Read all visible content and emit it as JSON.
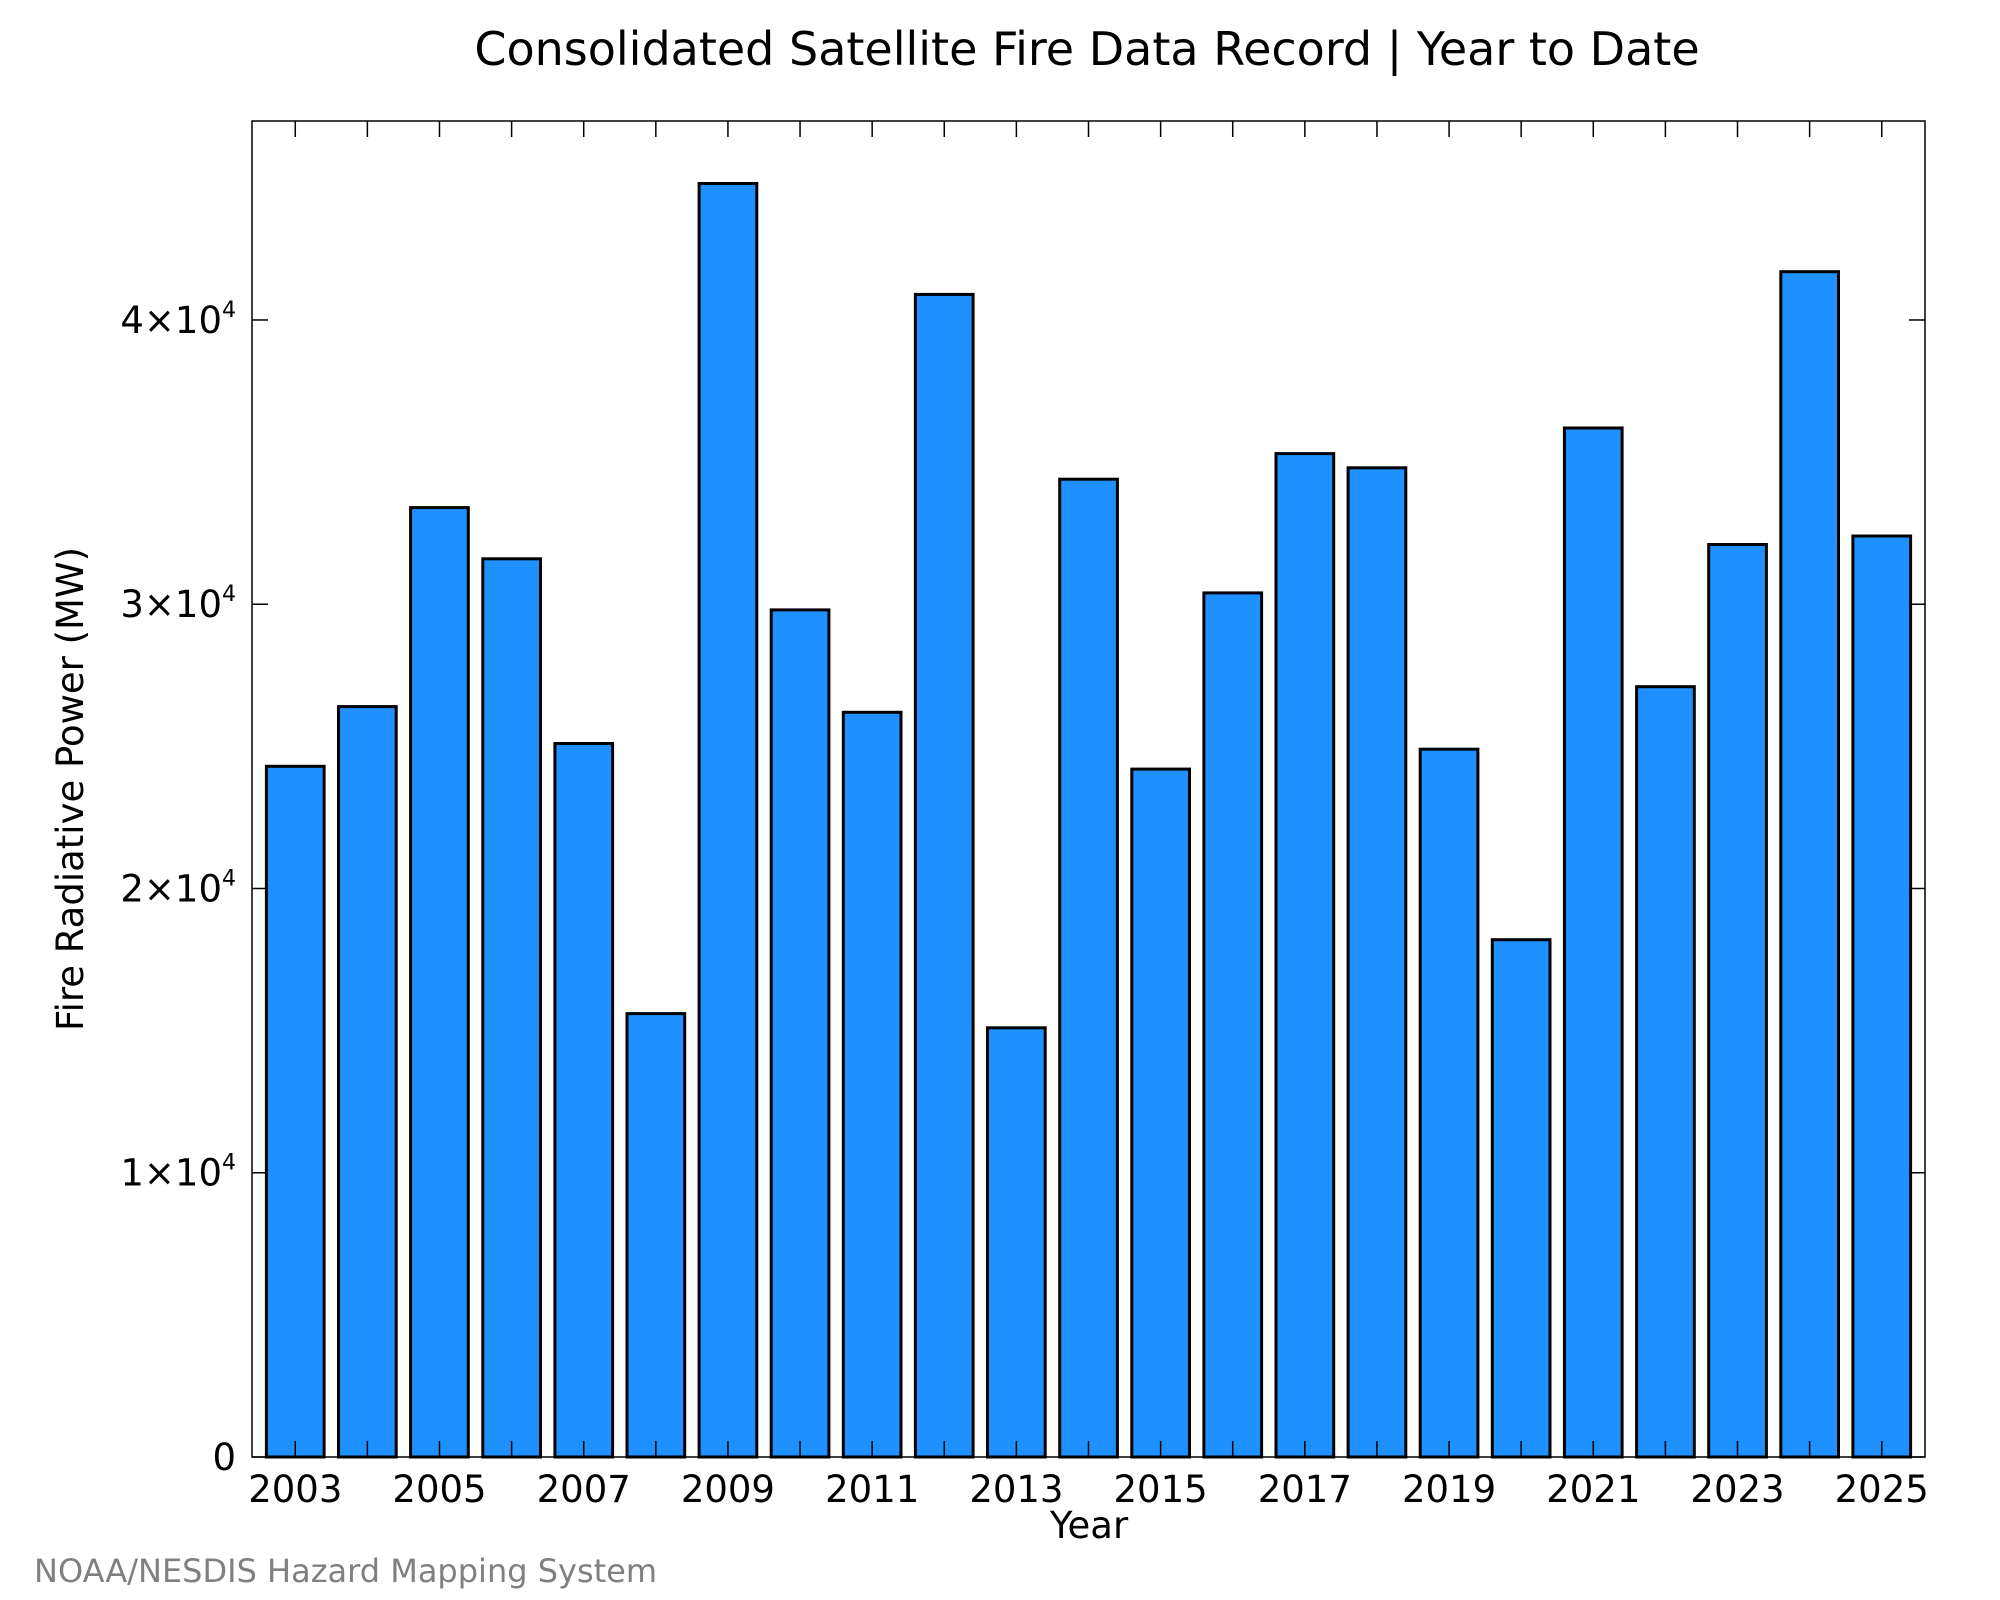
{
  "chart_data": {
    "type": "bar",
    "title": "Consolidated Satellite Fire Data Record | Year to Date",
    "xlabel": "Year",
    "ylabel": "Fire Radiative Power (MW)",
    "credit": "NOAA/NESDIS Hazard Mapping System",
    "categories": [
      "2003",
      "2004",
      "2005",
      "2006",
      "2007",
      "2008",
      "2009",
      "2010",
      "2011",
      "2012",
      "2013",
      "2014",
      "2015",
      "2016",
      "2017",
      "2018",
      "2019",
      "2020",
      "2021",
      "2022",
      "2023",
      "2024",
      "2025"
    ],
    "values": [
      24300,
      26400,
      33400,
      31600,
      25100,
      15600,
      44800,
      29800,
      26200,
      40900,
      15100,
      34400,
      24200,
      30400,
      35300,
      34800,
      24900,
      18200,
      36200,
      27100,
      32100,
      41700,
      32400
    ],
    "x_tick_labels": [
      "2003",
      "2005",
      "2007",
      "2009",
      "2011",
      "2013",
      "2015",
      "2017",
      "2019",
      "2021",
      "2023",
      "2025"
    ],
    "y_ticks": [
      {
        "value": 0,
        "base": "0",
        "exp": ""
      },
      {
        "value": 10000,
        "base": "1×10",
        "exp": "4"
      },
      {
        "value": 20000,
        "base": "2×10",
        "exp": "4"
      },
      {
        "value": 30000,
        "base": "3×10",
        "exp": "4"
      },
      {
        "value": 40000,
        "base": "4×10",
        "exp": "4"
      }
    ],
    "ylim": [
      0,
      47000
    ],
    "xlim": [
      2002.4,
      2025.6
    ],
    "bar_color": "#1e90ff",
    "bar_edge_color": "#000000",
    "grid": false,
    "legend": "none"
  }
}
